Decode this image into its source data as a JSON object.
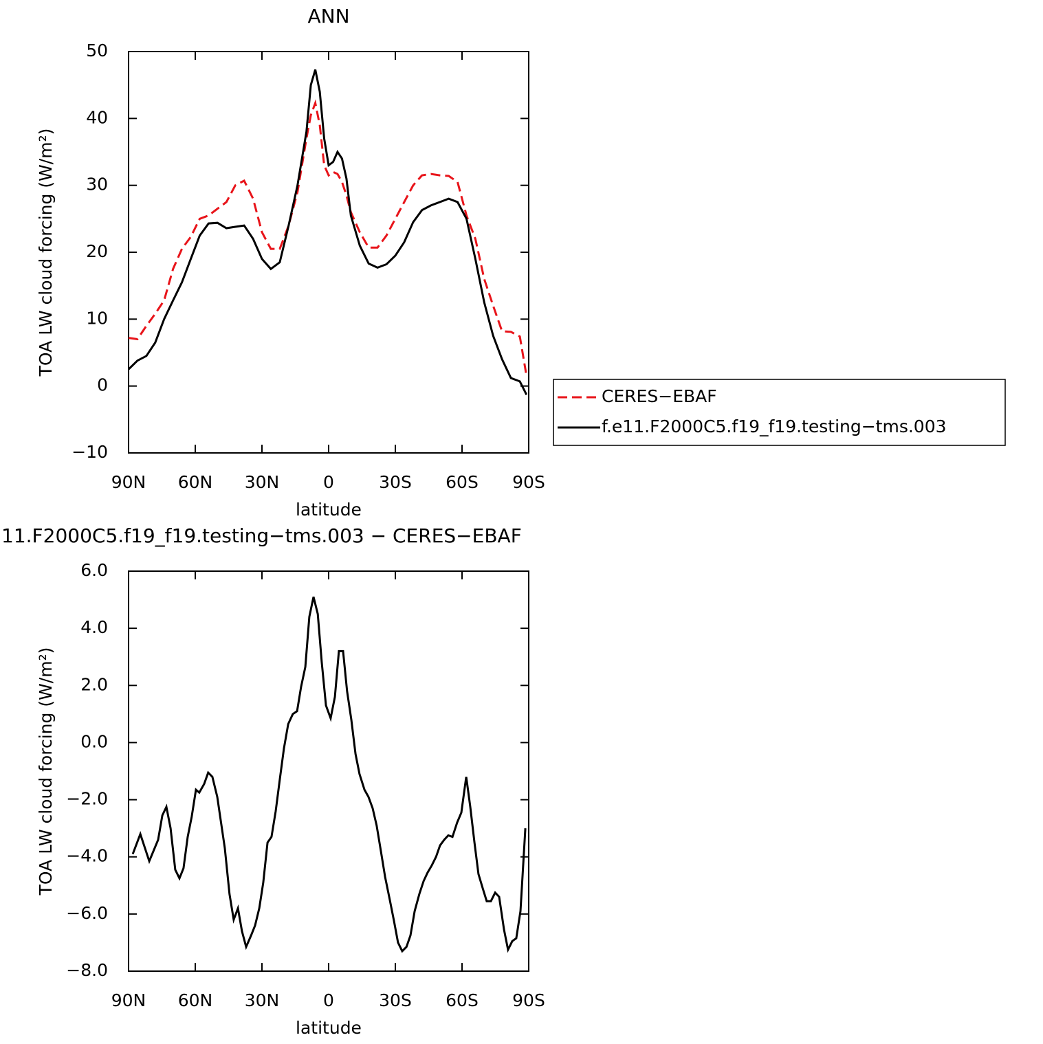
{
  "chart_data": [
    {
      "type": "line",
      "title": "ANN",
      "xlabel": "latitude",
      "ylabel": "TOA LW cloud forcing (W/m²)",
      "x": [
        90,
        86,
        82,
        78,
        74,
        70,
        66,
        62,
        58,
        54,
        50,
        46,
        42,
        38,
        34,
        30,
        26,
        22,
        18,
        14,
        10,
        8,
        6,
        4,
        2,
        0,
        -2,
        -4,
        -6,
        -8,
        -10,
        -14,
        -18,
        -22,
        -26,
        -30,
        -34,
        -38,
        -42,
        -46,
        -50,
        -54,
        -58,
        -62,
        -66,
        -70,
        -74,
        -78,
        -82,
        -86,
        -89
      ],
      "series": [
        {
          "name": "CERES−EBAF",
          "color": "#e8141a",
          "linestyle": "dashed",
          "values": [
            7.2,
            7,
            9,
            10.8,
            12.8,
            17.5,
            20.5,
            22.3,
            25,
            25.5,
            26.5,
            27.5,
            30,
            30.7,
            28,
            23,
            20.5,
            20.5,
            24,
            29,
            37,
            40.5,
            42.3,
            39,
            33,
            31.5,
            32,
            31.7,
            30.5,
            28.5,
            26,
            23,
            20.7,
            20.7,
            22.5,
            25,
            27.5,
            30,
            31.5,
            31.7,
            31.5,
            31.4,
            30.5,
            25.5,
            22,
            16,
            12,
            8.2,
            8.1,
            7.4,
            1.5
          ]
        },
        {
          "name": "f.e11.F2000C5.f19_f19.testing−tms.003",
          "color": "#000000",
          "linestyle": "solid",
          "values": [
            2.5,
            3.8,
            4.5,
            6.5,
            10,
            12.8,
            15.5,
            19,
            22.5,
            24.3,
            24.4,
            23.6,
            23.8,
            24,
            22,
            19,
            17.5,
            18.5,
            24,
            30,
            38,
            45,
            47.3,
            44,
            37,
            33,
            33.5,
            35,
            34,
            31,
            25.5,
            21,
            18.3,
            17.7,
            18.2,
            19.5,
            21.5,
            24.5,
            26.3,
            27,
            27.5,
            28,
            27.5,
            25,
            19,
            12.5,
            7.5,
            4,
            1.2,
            0.7,
            -1.3
          ]
        }
      ],
      "xlim": [
        90,
        -90
      ],
      "xticks": [
        {
          "value": 90,
          "label": "90N"
        },
        {
          "value": 60,
          "label": "60N"
        },
        {
          "value": 30,
          "label": "30N"
        },
        0,
        {
          "value": -30,
          "label": "30S"
        },
        {
          "value": -60,
          "label": "60S"
        },
        {
          "value": -90,
          "label": "90S"
        }
      ],
      "ylim": [
        -10,
        50
      ],
      "yticks": [
        {
          "value": -10,
          "label": "−10"
        },
        0,
        10,
        20,
        30,
        40,
        50
      ],
      "legend": "right"
    },
    {
      "type": "line",
      "title": "11.F2000C5.f19_f19.testing−tms.003 − CERES−EBAF",
      "xlabel": "latitude",
      "ylabel": "TOA LW cloud forcing (W/m²)",
      "x": [
        88.1,
        84.7,
        80.7,
        76.7,
        74.8,
        73.0,
        71.1,
        69.0,
        67.1,
        65.3,
        63.4,
        61.6,
        59.7,
        58.2,
        56.0,
        54.2,
        52.3,
        50.1,
        46.7,
        44.6,
        42.7,
        40.8,
        39.0,
        37.1,
        34.9,
        33.1,
        31.2,
        29.4,
        27.5,
        25.7,
        23.8,
        22.0,
        20.1,
        18.2,
        16.1,
        14.2,
        12.4,
        10.5,
        8.7,
        6.8,
        4.9,
        3.1,
        1.2,
        -0.9,
        -2.8,
        -4.6,
        -6.5,
        -8.3,
        -10.2,
        -12.1,
        -13.9,
        -16.1,
        -17.9,
        -19.8,
        -21.6,
        -23.5,
        -25.4,
        -27.5,
        -29.4,
        -31.2,
        -33.1,
        -35.0,
        -36.8,
        -38.7,
        -40.8,
        -42.7,
        -44.5,
        -46.4,
        -48.3,
        -50.1,
        -52.0,
        -53.8,
        -55.7,
        -57.8,
        -59.7,
        -61.9,
        -63.7,
        -65.6,
        -67.4,
        -69.3,
        -71.1,
        -73.0,
        -74.9,
        -76.7,
        -78.9,
        -80.7,
        -82.6,
        -84.4,
        -86.3,
        -88.5
      ],
      "series": [
        {
          "color": "#000000",
          "linestyle": "solid",
          "values": [
            -3.9,
            -3.2,
            -4.15,
            -3.4,
            -2.55,
            -2.25,
            -3,
            -4.45,
            -4.75,
            -4.4,
            -3.3,
            -2.6,
            -1.65,
            -1.75,
            -1.45,
            -1.05,
            -1.2,
            -1.9,
            -3.7,
            -5.3,
            -6.2,
            -5.8,
            -6.6,
            -7.15,
            -6.75,
            -6.4,
            -5.8,
            -4.9,
            -3.5,
            -3.3,
            -2.4,
            -1.3,
            -0.2,
            0.65,
            1,
            1.1,
            1.95,
            2.65,
            4.4,
            5.1,
            4.5,
            2.8,
            1.3,
            0.85,
            1.6,
            3.2,
            3.2,
            1.8,
            0.8,
            -0.4,
            -1.1,
            -1.65,
            -1.9,
            -2.3,
            -2.9,
            -3.8,
            -4.7,
            -5.5,
            -6.25,
            -7,
            -7.3,
            -7.15,
            -6.75,
            -5.9,
            -5.3,
            -4.85,
            -4.55,
            -4.3,
            -4,
            -3.6,
            -3.4,
            -3.25,
            -3.3,
            -2.8,
            -2.45,
            -1.2,
            -2.25,
            -3.5,
            -4.6,
            -5.1,
            -5.55,
            -5.55,
            -5.25,
            -5.4,
            -6.55,
            -7.25,
            -6.95,
            -6.85,
            -5.9,
            -3
          ]
        }
      ],
      "xlim": [
        90,
        -90
      ],
      "xticks": [
        {
          "value": 90,
          "label": "90N"
        },
        {
          "value": 60,
          "label": "60N"
        },
        {
          "value": 30,
          "label": "30N"
        },
        0,
        {
          "value": -30,
          "label": "30S"
        },
        {
          "value": -60,
          "label": "60S"
        },
        {
          "value": -90,
          "label": "90S"
        }
      ],
      "ylim": [
        -8,
        6
      ],
      "yticks": [
        {
          "value": -8,
          "label": "−8.0"
        },
        {
          "value": -6,
          "label": "−6.0"
        },
        {
          "value": -4,
          "label": "−4.0"
        },
        {
          "value": -2,
          "label": "−2.0"
        },
        {
          "value": 0,
          "label": "0.0"
        },
        {
          "value": 2,
          "label": "2.0"
        },
        {
          "value": 4,
          "label": "4.0"
        },
        {
          "value": 6,
          "label": "6.0"
        }
      ]
    }
  ]
}
